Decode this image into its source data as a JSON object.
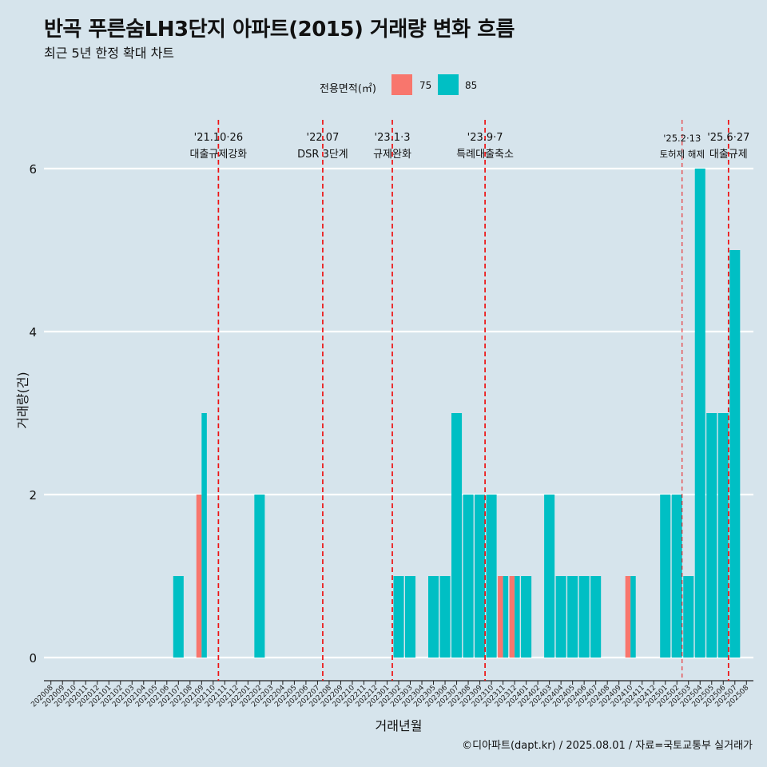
{
  "header": {
    "title": "반곡 푸른숨LH3단지 아파트(2015) 거래량 변화 흐름",
    "subtitle": "최근 5년 한정 확대 차트"
  },
  "caption": "©디아파트(dapt.kr) / 2025.08.01 / 자료=국토교통부 실거래가",
  "legend": {
    "title": "전용면적(㎡)",
    "items": [
      {
        "label": "75",
        "color": "#f8766d"
      },
      {
        "label": "85",
        "color": "#00bfc4"
      }
    ]
  },
  "chart_data": {
    "type": "bar",
    "stacked": false,
    "dodged": true,
    "xlabel": "거래년월",
    "ylabel": "거래량(건)",
    "yticks": [
      0,
      2,
      4,
      6
    ],
    "ylim": [
      0,
      6.1
    ],
    "grid": "horizontal",
    "legend_position": "top",
    "categories": [
      "202008",
      "202009",
      "202010",
      "202011",
      "202012",
      "202101",
      "202102",
      "202103",
      "202104",
      "202105",
      "202106",
      "202107",
      "202108",
      "202109",
      "202110",
      "202111",
      "202112",
      "202201",
      "202202",
      "202203",
      "202204",
      "202205",
      "202206",
      "202207",
      "202208",
      "202209",
      "202210",
      "202211",
      "202212",
      "202301",
      "202302",
      "202303",
      "202304",
      "202305",
      "202306",
      "202307",
      "202308",
      "202309",
      "202310",
      "202311",
      "202312",
      "202401",
      "202402",
      "202403",
      "202404",
      "202405",
      "202406",
      "202407",
      "202408",
      "202409",
      "202410",
      "202411",
      "202412",
      "202501",
      "202502",
      "202503",
      "202504",
      "202505",
      "202506",
      "202507",
      "202508"
    ],
    "series": [
      {
        "name": "75",
        "color": "#f8766d",
        "values": [
          0,
          0,
          0,
          0,
          0,
          0,
          0,
          0,
          0,
          0,
          0,
          0,
          0,
          2,
          0,
          0,
          0,
          0,
          0,
          0,
          0,
          0,
          0,
          0,
          0,
          0,
          0,
          0,
          0,
          0,
          0,
          0,
          0,
          0,
          0,
          0,
          0,
          0,
          0,
          1,
          1,
          0,
          0,
          0,
          0,
          0,
          0,
          0,
          0,
          0,
          1,
          0,
          0,
          0,
          0,
          0,
          0,
          0,
          0,
          0,
          0
        ]
      },
      {
        "name": "85",
        "color": "#00bfc4",
        "values": [
          0,
          0,
          0,
          0,
          0,
          0,
          0,
          0,
          0,
          0,
          0,
          1,
          0,
          3,
          0,
          0,
          0,
          0,
          2,
          0,
          0,
          0,
          0,
          0,
          0,
          0,
          0,
          0,
          0,
          0,
          1,
          1,
          0,
          1,
          1,
          3,
          2,
          2,
          2,
          1,
          1,
          1,
          0,
          2,
          1,
          1,
          1,
          1,
          0,
          0,
          1,
          0,
          0,
          2,
          2,
          1,
          6,
          3,
          3,
          5,
          0
        ]
      }
    ],
    "annotations": [
      {
        "at": "202110",
        "line1": "'21.10·26",
        "line2": "대출규제강화",
        "style": "thick"
      },
      {
        "at": "202207",
        "line1": "'22.07",
        "line2": "DSR 3단계",
        "style": "thick"
      },
      {
        "at": "202301",
        "line1": "'23.1·3",
        "line2": "규제완화",
        "style": "thick"
      },
      {
        "at": "202309",
        "line1": "'23.9·7",
        "line2": "특례대출축소",
        "style": "thick"
      },
      {
        "at": "202502",
        "line1": "'25.2·13",
        "line2": "토허제 해제",
        "style": "thin"
      },
      {
        "at": "202506",
        "line1": "'25.6·27",
        "line2": "대출규제",
        "style": "thick"
      }
    ]
  }
}
